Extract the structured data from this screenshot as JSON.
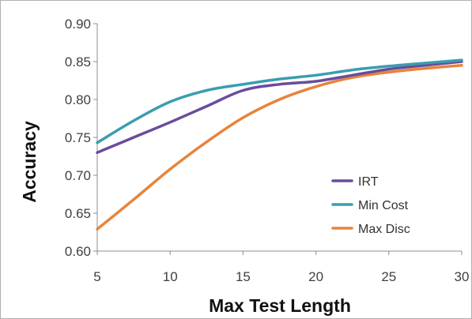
{
  "chart_data": {
    "type": "line",
    "title": "",
    "xlabel": "Max Test Length",
    "ylabel": "Accuracy",
    "xlim": [
      5,
      30
    ],
    "ylim": [
      0.6,
      0.9
    ],
    "xticks": [
      5,
      10,
      15,
      20,
      25,
      30
    ],
    "yticks": [
      0.6,
      0.65,
      0.7,
      0.75,
      0.8,
      0.85,
      0.9
    ],
    "xtick_labels": [
      "5",
      "10",
      "15",
      "20",
      "25",
      "30"
    ],
    "ytick_labels": [
      "0.60",
      "0.65",
      "0.70",
      "0.75",
      "0.80",
      "0.85",
      "0.90"
    ],
    "grid": false,
    "legend_position": "lower-right",
    "x": [
      5,
      7.5,
      10,
      12.5,
      15,
      17.5,
      20,
      22.5,
      25,
      27.5,
      30
    ],
    "series": [
      {
        "name": "IRT",
        "color": "#6a4c9c",
        "values": [
          0.73,
          0.75,
          0.77,
          0.791,
          0.812,
          0.82,
          0.824,
          0.832,
          0.84,
          0.845,
          0.85
        ]
      },
      {
        "name": "Min Cost",
        "color": "#3b9db0",
        "values": [
          0.743,
          0.772,
          0.797,
          0.812,
          0.82,
          0.827,
          0.832,
          0.839,
          0.844,
          0.848,
          0.852
        ]
      },
      {
        "name": "Max Disc",
        "color": "#e8843a",
        "values": [
          0.629,
          0.668,
          0.708,
          0.744,
          0.776,
          0.8,
          0.817,
          0.829,
          0.836,
          0.841,
          0.845
        ]
      }
    ]
  }
}
